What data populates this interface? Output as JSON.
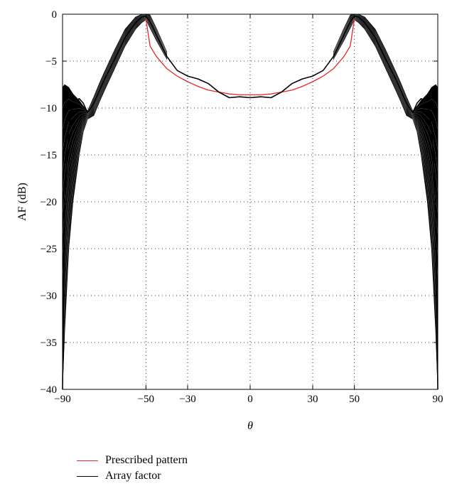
{
  "chart_data": {
    "type": "line",
    "xlabel": "θ",
    "ylabel": "AF (dB)",
    "xlim": [
      -90,
      90
    ],
    "ylim": [
      -40,
      0
    ],
    "xticks": [
      -90,
      -50,
      -30,
      0,
      30,
      50,
      90
    ],
    "yticks": [
      0,
      -5,
      -10,
      -15,
      -20,
      -25,
      -30,
      -35,
      -40
    ],
    "xtick_labels": [
      "−90",
      "−50",
      "−30",
      "0",
      "30",
      "50",
      "90"
    ],
    "ytick_labels": [
      "0",
      "−5",
      "−10",
      "−15",
      "−20",
      "−25",
      "−30",
      "−35",
      "−40"
    ],
    "grid": true,
    "legend_position": "bottom-left-outside",
    "series": [
      {
        "name": "Prescribed pattern",
        "color": "#e8262b",
        "x": [
          -50,
          -48,
          -45,
          -40,
          -35,
          -30,
          -25,
          -20,
          -15,
          -10,
          -5,
          0,
          5,
          10,
          15,
          20,
          25,
          30,
          35,
          40,
          45,
          48,
          50
        ],
        "y": [
          -0.5,
          -3.4,
          -4.5,
          -5.8,
          -6.6,
          -7.2,
          -7.7,
          -8.1,
          -8.3,
          -8.5,
          -8.6,
          -8.6,
          -8.6,
          -8.5,
          -8.3,
          -8.1,
          -7.7,
          -7.2,
          -6.6,
          -5.8,
          -4.5,
          -3.4,
          -0.5
        ]
      },
      {
        "name": "Array factor",
        "color": "#000000",
        "x": [
          -90,
          -89,
          -87,
          -85,
          -82,
          -80,
          -78,
          -75,
          -72,
          -70,
          -65,
          -60,
          -55,
          -52,
          -50,
          -48,
          -45,
          -40,
          -35,
          -30,
          -25,
          -20,
          -15,
          -10,
          -5,
          0,
          5,
          10,
          15,
          20,
          25,
          30,
          35,
          40,
          45,
          48,
          50,
          52,
          55,
          60,
          65,
          70,
          72,
          75,
          78,
          80,
          82,
          85,
          87,
          89,
          90
        ],
        "y": [
          -40,
          -20,
          -12,
          -9.5,
          -9,
          -9.5,
          -10.5,
          -9.5,
          -8,
          -7,
          -4.8,
          -2.5,
          -0.9,
          -0.3,
          -0.2,
          -0.8,
          -2.2,
          -4.5,
          -6,
          -6.6,
          -6.9,
          -7.4,
          -8.3,
          -8.9,
          -8.8,
          -8.9,
          -8.8,
          -8.9,
          -8.3,
          -7.4,
          -6.9,
          -6.6,
          -6,
          -4.5,
          -2.2,
          -0.8,
          -0.2,
          -0.3,
          -0.9,
          -2.5,
          -4.8,
          -7,
          -8,
          -9.5,
          -10.5,
          -9.5,
          -9,
          -9.5,
          -12,
          -20,
          -40
        ]
      }
    ],
    "band": {
      "x": [
        -90,
        -89,
        -87,
        -85,
        -82,
        -80,
        -78,
        -75,
        -72,
        -70,
        -65,
        -60,
        -55,
        -52,
        -50,
        -48,
        -45,
        -40,
        40,
        45,
        48,
        50,
        52,
        55,
        60,
        65,
        70,
        72,
        75,
        78,
        80,
        82,
        85,
        87,
        89,
        90
      ],
      "upper": [
        -7.8,
        -7.5,
        -7.8,
        -8.5,
        -9.2,
        -9.8,
        -10.3,
        -8.8,
        -7.2,
        -6.2,
        -3.8,
        -1.6,
        -0.3,
        0,
        0,
        -0.1,
        -1.5,
        -4,
        -4,
        -1.5,
        -0.1,
        0,
        0,
        -0.3,
        -1.6,
        -3.8,
        -6.2,
        -7.2,
        -8.8,
        -10.3,
        -9.8,
        -9.2,
        -8.5,
        -7.8,
        -7.5,
        -7.8
      ],
      "lower": [
        -40,
        -34,
        -25,
        -20,
        -15,
        -12.5,
        -11.2,
        -10.8,
        -9.2,
        -8.2,
        -5.8,
        -3.4,
        -1.6,
        -0.9,
        -0.6,
        -1.5,
        -2.8,
        -4.8,
        -4.8,
        -2.8,
        -1.5,
        -0.6,
        -0.9,
        -1.6,
        -3.4,
        -5.8,
        -8.2,
        -9.2,
        -10.8,
        -11.2,
        -12.5,
        -15,
        -20,
        -25,
        -34,
        -40
      ]
    }
  }
}
